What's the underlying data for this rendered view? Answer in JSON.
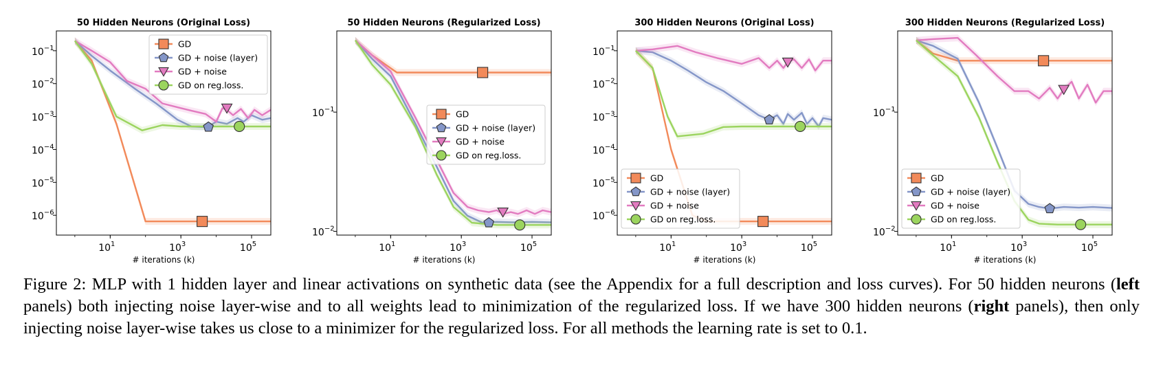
{
  "caption": {
    "figure_label": "Figure 2:",
    "part1": " MLP with 1 hidden layer and linear activations on synthetic data (see the Appendix for a full description and loss curves). For 50 hidden neurons (",
    "bold1": "left",
    "part2": " panels) both injecting noise layer-wise and to all weights lead to minimization of the regularized loss. If we have 300 hidden neurons (",
    "bold2": "right",
    "part3": " panels), then only injecting noise layer-wise takes us close to a minimizer for the regularized loss. For all methods the learning rate is set to 0.1."
  },
  "colors": {
    "GD": "#f28a5a",
    "GD + noise (layer)": "#8496c8",
    "GD + noise": "#e27bc0",
    "GD on reg.loss.": "#9bd45e"
  },
  "chart_data": [
    {
      "type": "line",
      "title": "50 Hidden Neurons (Original Loss)",
      "xlabel": "# iterations (k)",
      "xscale": "log",
      "yscale": "log",
      "xlim": [
        0.3,
        350000
      ],
      "ylim": [
        2.5e-07,
        0.4
      ],
      "xticks": [
        {
          "v": 10,
          "b": "10",
          "e": "1"
        },
        {
          "v": 1000,
          "b": "10",
          "e": "3"
        },
        {
          "v": 100000,
          "b": "10",
          "e": "5"
        }
      ],
      "yticks": [
        {
          "v": 0.1,
          "b": "10",
          "e": "−1"
        },
        {
          "v": 0.01,
          "b": "10",
          "e": "−2"
        },
        {
          "v": 0.001,
          "b": "10",
          "e": "−3"
        },
        {
          "v": 0.0001,
          "b": "10",
          "e": "−4"
        },
        {
          "v": 1e-05,
          "b": "10",
          "e": "−5"
        },
        {
          "v": 1e-06,
          "b": "10",
          "e": "−6"
        }
      ],
      "legend": "top-right",
      "series": [
        {
          "name": "GD",
          "marker": "square",
          "marker_at": [
            4000,
            6.5e-07
          ],
          "x": [
            1,
            3,
            15,
            100,
            1000,
            10000,
            100000,
            350000
          ],
          "y": [
            0.2,
            0.05,
            0.0006,
            6.5e-07,
            6.5e-07,
            6.5e-07,
            6.5e-07,
            6.5e-07
          ]
        },
        {
          "name": "GD + noise (layer)",
          "marker": "pentagon",
          "marker_at": [
            6000,
            0.00048
          ],
          "x": [
            1,
            3,
            10,
            50,
            200,
            800,
            2000,
            4000,
            6000,
            10000,
            20000,
            40000,
            60000,
            100000,
            200000,
            350000
          ],
          "y": [
            0.2,
            0.07,
            0.025,
            0.007,
            0.0025,
            0.0008,
            0.0005,
            0.00048,
            0.0005,
            0.0007,
            0.0006,
            0.0009,
            0.0007,
            0.0011,
            0.0008,
            0.0009
          ]
        },
        {
          "name": "GD + noise",
          "marker": "triangle-down",
          "marker_at": [
            20000,
            0.0018
          ],
          "x": [
            1,
            3,
            10,
            30,
            100,
            300,
            1000,
            2000,
            5000,
            10000,
            15000,
            20000,
            30000,
            50000,
            80000,
            120000,
            200000,
            350000
          ],
          "y": [
            0.2,
            0.1,
            0.045,
            0.012,
            0.007,
            0.0025,
            0.0018,
            0.0015,
            0.0012,
            0.0007,
            0.0018,
            0.0016,
            0.0011,
            0.0017,
            0.0009,
            0.0016,
            0.0011,
            0.0016
          ]
        },
        {
          "name": "GD on reg.loss.",
          "marker": "circle",
          "marker_at": [
            45000,
            0.0005
          ],
          "x": [
            1,
            3,
            15,
            80,
            300,
            1000,
            10000,
            100000,
            350000
          ],
          "y": [
            0.2,
            0.04,
            0.001,
            0.00038,
            0.00055,
            0.0005,
            0.0005,
            0.0005,
            0.0005
          ]
        }
      ]
    },
    {
      "type": "line",
      "title": "50 Hidden Neurons (Regularized Loss)",
      "xlabel": "# iterations (k)",
      "xscale": "log",
      "yscale": "log",
      "xlim": [
        0.3,
        350000
      ],
      "ylim": [
        0.0093,
        0.48
      ],
      "xticks": [
        {
          "v": 10,
          "b": "10",
          "e": "1"
        },
        {
          "v": 1000,
          "b": "10",
          "e": "3"
        },
        {
          "v": 100000,
          "b": "10",
          "e": "5"
        }
      ],
      "yticks": [
        {
          "v": 0.1,
          "b": "10",
          "e": "−1"
        },
        {
          "v": 0.01,
          "b": "10",
          "e": "−2"
        }
      ],
      "legend": "center-right",
      "series": [
        {
          "name": "GD",
          "marker": "square",
          "marker_at": [
            4000,
            0.215
          ],
          "x": [
            1,
            3,
            15,
            100,
            1000,
            10000,
            100000,
            350000
          ],
          "y": [
            0.4,
            0.3,
            0.215,
            0.215,
            0.215,
            0.215,
            0.215,
            0.215
          ]
        },
        {
          "name": "GD + noise (layer)",
          "marker": "pentagon",
          "marker_at": [
            6000,
            0.0118
          ],
          "x": [
            1,
            3,
            10,
            50,
            200,
            600,
            1500,
            4000,
            10000,
            30000,
            100000,
            350000
          ],
          "y": [
            0.4,
            0.28,
            0.2,
            0.08,
            0.035,
            0.018,
            0.0135,
            0.0118,
            0.012,
            0.0119,
            0.012,
            0.0119
          ]
        },
        {
          "name": "GD + noise",
          "marker": "triangle-down",
          "marker_at": [
            15000,
            0.0145
          ],
          "x": [
            1,
            3,
            10,
            50,
            200,
            600,
            1500,
            3000,
            6000,
            10000,
            15000,
            25000,
            40000,
            70000,
            120000,
            200000,
            350000
          ],
          "y": [
            0.4,
            0.3,
            0.22,
            0.09,
            0.04,
            0.021,
            0.016,
            0.015,
            0.0145,
            0.015,
            0.014,
            0.0145,
            0.014,
            0.015,
            0.014,
            0.015,
            0.0145
          ]
        },
        {
          "name": "GD on reg.loss.",
          "marker": "circle",
          "marker_at": [
            45000,
            0.0113
          ],
          "x": [
            1,
            3,
            10,
            50,
            200,
            600,
            2000,
            10000,
            100000,
            350000
          ],
          "y": [
            0.4,
            0.25,
            0.17,
            0.075,
            0.03,
            0.016,
            0.0118,
            0.0113,
            0.0113,
            0.0113
          ]
        }
      ]
    },
    {
      "type": "line",
      "title": "300 Hidden Neurons (Original Loss)",
      "xlabel": "# iterations (k)",
      "xscale": "log",
      "yscale": "log",
      "xlim": [
        0.3,
        350000
      ],
      "ylim": [
        2.5e-07,
        0.4
      ],
      "xticks": [
        {
          "v": 10,
          "b": "10",
          "e": "1"
        },
        {
          "v": 1000,
          "b": "10",
          "e": "3"
        },
        {
          "v": 100000,
          "b": "10",
          "e": "5"
        }
      ],
      "yticks": [
        {
          "v": 0.1,
          "b": "10",
          "e": "−1"
        },
        {
          "v": 0.01,
          "b": "10",
          "e": "−2"
        },
        {
          "v": 0.001,
          "b": "10",
          "e": "−3"
        },
        {
          "v": 0.0001,
          "b": "10",
          "e": "−4"
        },
        {
          "v": 1e-05,
          "b": "10",
          "e": "−5"
        },
        {
          "v": 1e-06,
          "b": "10",
          "e": "−6"
        }
      ],
      "legend": "bottom-left",
      "series": [
        {
          "name": "GD",
          "marker": "square",
          "marker_at": [
            4000,
            6.5e-07
          ],
          "x": [
            1,
            3,
            10,
            40,
            100,
            1000,
            10000,
            100000,
            350000
          ],
          "y": [
            0.1,
            0.03,
            0.0001,
            1e-06,
            6.5e-07,
            6.5e-07,
            6.5e-07,
            6.5e-07,
            6.5e-07
          ]
        },
        {
          "name": "GD + noise (layer)",
          "marker": "pentagon",
          "marker_at": [
            6000,
            0.0008
          ],
          "x": [
            1,
            3,
            10,
            30,
            100,
            300,
            1000,
            3000,
            6000,
            10000,
            15000,
            20000,
            30000,
            50000,
            70000,
            100000,
            150000,
            200000,
            350000
          ],
          "y": [
            0.1,
            0.09,
            0.05,
            0.025,
            0.011,
            0.006,
            0.0025,
            0.0011,
            0.0008,
            0.0011,
            0.0006,
            0.0012,
            0.0008,
            0.0013,
            0.0006,
            0.0009,
            0.0005,
            0.0009,
            0.0008
          ]
        },
        {
          "name": "GD + noise",
          "marker": "triangle-down",
          "marker_at": [
            20000,
            0.045
          ],
          "x": [
            1,
            3,
            15,
            50,
            200,
            1000,
            3000,
            6000,
            10000,
            15000,
            20000,
            30000,
            50000,
            80000,
            120000,
            200000,
            350000
          ],
          "y": [
            0.1,
            0.11,
            0.14,
            0.09,
            0.06,
            0.04,
            0.06,
            0.03,
            0.05,
            0.03,
            0.045,
            0.055,
            0.03,
            0.055,
            0.025,
            0.05,
            0.05
          ]
        },
        {
          "name": "GD on reg.loss.",
          "marker": "circle",
          "marker_at": [
            45000,
            0.0005
          ],
          "x": [
            1,
            3,
            8,
            15,
            80,
            300,
            1000,
            10000,
            100000,
            350000
          ],
          "y": [
            0.1,
            0.03,
            0.001,
            0.00025,
            0.0003,
            0.00048,
            0.0005,
            0.0005,
            0.0005,
            0.0005
          ]
        }
      ]
    },
    {
      "type": "line",
      "title": "300 Hidden Neurons (Regularized Loss)",
      "xlabel": "# iterations (k)",
      "xscale": "log",
      "yscale": "log",
      "xlim": [
        0.3,
        350000
      ],
      "ylim": [
        0.0093,
        0.48
      ],
      "xticks": [
        {
          "v": 10,
          "b": "10",
          "e": "1"
        },
        {
          "v": 1000,
          "b": "10",
          "e": "3"
        },
        {
          "v": 100000,
          "b": "10",
          "e": "5"
        }
      ],
      "yticks": [
        {
          "v": 0.1,
          "b": "10",
          "e": "−1"
        },
        {
          "v": 0.01,
          "b": "10",
          "e": "−2"
        }
      ],
      "legend": "bottom-left",
      "series": [
        {
          "name": "GD",
          "marker": "square",
          "marker_at": [
            4000,
            0.27
          ],
          "x": [
            1,
            3,
            15,
            100,
            1000,
            10000,
            100000,
            350000
          ],
          "y": [
            0.4,
            0.31,
            0.27,
            0.27,
            0.27,
            0.27,
            0.27,
            0.27
          ]
        },
        {
          "name": "GD + noise (layer)",
          "marker": "pentagon",
          "marker_at": [
            6000,
            0.0155
          ],
          "x": [
            1,
            3,
            15,
            60,
            200,
            600,
            1500,
            3000,
            6000,
            15000,
            40000,
            100000,
            350000
          ],
          "y": [
            0.4,
            0.36,
            0.28,
            0.12,
            0.05,
            0.022,
            0.017,
            0.016,
            0.0155,
            0.016,
            0.0158,
            0.016,
            0.0157
          ]
        },
        {
          "name": "GD + noise",
          "marker": "triangle-down",
          "marker_at": [
            15000,
            0.155
          ],
          "x": [
            1,
            3,
            15,
            50,
            200,
            600,
            1500,
            3000,
            6000,
            10000,
            15000,
            25000,
            40000,
            70000,
            120000,
            200000,
            350000
          ],
          "y": [
            0.4,
            0.41,
            0.42,
            0.3,
            0.2,
            0.15,
            0.15,
            0.13,
            0.16,
            0.13,
            0.155,
            0.18,
            0.13,
            0.17,
            0.12,
            0.15,
            0.15
          ]
        },
        {
          "name": "GD on reg.loss.",
          "marker": "circle",
          "marker_at": [
            45000,
            0.0114
          ],
          "x": [
            1,
            3,
            15,
            60,
            200,
            600,
            1500,
            3000,
            10000,
            100000,
            350000
          ],
          "y": [
            0.4,
            0.3,
            0.2,
            0.09,
            0.038,
            0.018,
            0.0125,
            0.0116,
            0.0114,
            0.0114,
            0.0114
          ]
        }
      ]
    }
  ]
}
